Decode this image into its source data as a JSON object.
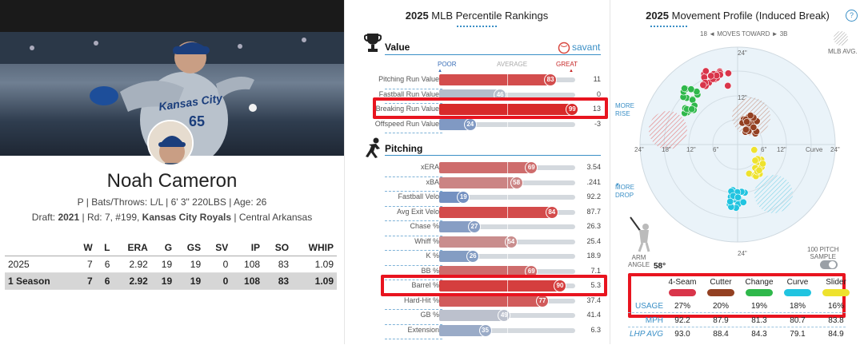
{
  "player": {
    "name": "Noah Cameron",
    "bio_line1": "P | Bats/Throws: L/L | 6' 3\" 220LBS | Age: 26",
    "bio_line2_prefix": "Draft: ",
    "draft_year": "2021",
    "bio_line2_mid": " | Rd: 7, #199, ",
    "draft_team": "Kansas City Royals",
    "bio_line2_suffix": " | Central Arkansas",
    "jersey_text": "Kansas City",
    "jersey_number": "65"
  },
  "stats": {
    "headers": [
      "",
      "W",
      "L",
      "ERA",
      "G",
      "GS",
      "SV",
      "IP",
      "SO",
      "WHIP"
    ],
    "rows": [
      [
        "2025",
        "7",
        "6",
        "2.92",
        "19",
        "19",
        "0",
        "108",
        "83",
        "1.09"
      ]
    ],
    "total": [
      "1 Season",
      "7",
      "6",
      "2.92",
      "19",
      "19",
      "0",
      "108",
      "83",
      "1.09"
    ]
  },
  "percentile": {
    "title_year": "2025",
    "title_rest": " MLB Percentile Rankings",
    "savant": "savant",
    "poor": "POOR",
    "average": "AVERAGE",
    "great": "GREAT",
    "value_title": "Value",
    "pitching_title": "Pitching",
    "value_rows": [
      {
        "label": "Pitching Run Value",
        "pct": 83,
        "value": "11"
      },
      {
        "label": "Fastball Run Value",
        "pct": 46,
        "value": "0"
      },
      {
        "label": "Breaking Run Value",
        "pct": 99,
        "value": "13"
      },
      {
        "label": "Offspeed Run Value",
        "pct": 24,
        "value": "-3"
      }
    ],
    "pitching_rows": [
      {
        "label": "xERA",
        "pct": 69,
        "value": "3.54"
      },
      {
        "label": "xBA",
        "pct": 58,
        "value": ".241"
      },
      {
        "label": "Fastball Velo",
        "pct": 19,
        "value": "92.2"
      },
      {
        "label": "Avg Exit Velo",
        "pct": 84,
        "value": "87.7"
      },
      {
        "label": "Chase %",
        "pct": 27,
        "value": "26.3"
      },
      {
        "label": "Whiff %",
        "pct": 54,
        "value": "25.4"
      },
      {
        "label": "K %",
        "pct": 26,
        "value": "18.9"
      },
      {
        "label": "BB %",
        "pct": 69,
        "value": "7.1"
      },
      {
        "label": "Barrel %",
        "pct": 90,
        "value": "5.3"
      },
      {
        "label": "Hard-Hit %",
        "pct": 77,
        "value": "37.4"
      },
      {
        "label": "GB %",
        "pct": 49,
        "value": "41.4"
      },
      {
        "label": "Extension",
        "pct": 35,
        "value": "6.3"
      }
    ]
  },
  "movement": {
    "title_year": "2025",
    "title_rest": " Movement Profile (Induced Break)",
    "help": "?",
    "moves_toward": "18 ◄ MOVES TOWARD ► 3B",
    "mlb_avg": "MLB AVG.",
    "more_rise": "MORE\nRISE",
    "more_drop": "MORE\nDROP",
    "ring_labels": {
      "top_outer": "24\"",
      "top_inner": "12\"",
      "bottom": "24\"",
      "left_outer": "24\"",
      "left_mid": "18\"",
      "left_inner": "12\"",
      "left_c": "6\"",
      "right_inner": "6\"",
      "right_mid": "12\"",
      "right_c": "Curve",
      "right_outer": "24\""
    },
    "arm_angle_label": "ARM\nANGLE",
    "arm_angle": "58°",
    "sample_label": "100 PITCH\nSAMPLE",
    "usage_label": "USAGE",
    "mph_label": "MPH",
    "lhp_label": "LHP AVG",
    "pitches": [
      {
        "name": "4-Seam",
        "color": "#d9354a",
        "usage": "27%",
        "mph": "92.2",
        "lhp": "93.0"
      },
      {
        "name": "Cutter",
        "color": "#934022",
        "usage": "20%",
        "mph": "87.9",
        "lhp": "88.4"
      },
      {
        "name": "Change",
        "color": "#2fb84b",
        "usage": "19%",
        "mph": "81.3",
        "lhp": "84.3"
      },
      {
        "name": "Curve",
        "color": "#21c4e0",
        "usage": "18%",
        "mph": "80.7",
        "lhp": "79.1"
      },
      {
        "name": "Slider",
        "color": "#eee22e",
        "usage": "16%",
        "mph": "83.8",
        "lhp": "84.9"
      }
    ]
  },
  "colors": {
    "red": "#d8473f",
    "blue": "#4a74b8",
    "grey": "#c9c9c9",
    "highlight": "#e8141f",
    "teal": "#3a8fc6"
  }
}
